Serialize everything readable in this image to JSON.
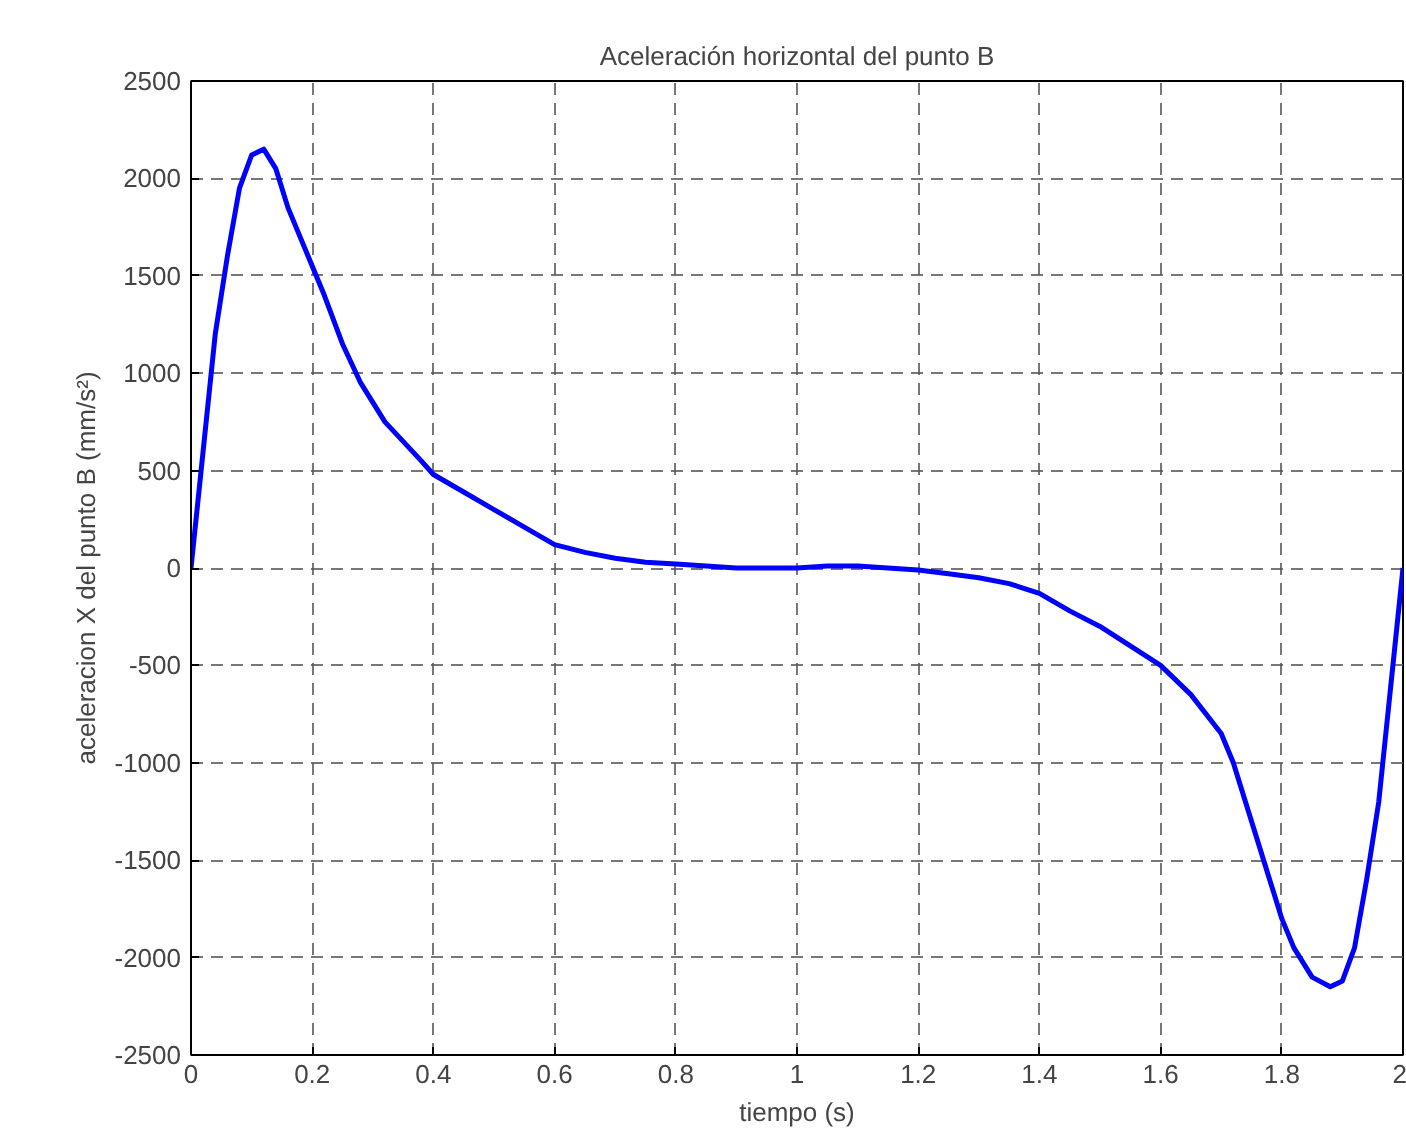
{
  "chart_data": {
    "type": "line",
    "title": "Aceleración horizontal del punto B",
    "xlabel": "tiempo (s)",
    "ylabel": "aceleracion X del punto B (mm/s²)",
    "x": [
      0,
      0.02,
      0.04,
      0.06,
      0.08,
      0.1,
      0.12,
      0.14,
      0.16,
      0.18,
      0.2,
      0.22,
      0.25,
      0.28,
      0.3,
      0.32,
      0.35,
      0.38,
      0.4,
      0.45,
      0.5,
      0.55,
      0.6,
      0.65,
      0.7,
      0.75,
      0.8,
      0.85,
      0.9,
      0.95,
      1.0,
      1.05,
      1.1,
      1.15,
      1.2,
      1.25,
      1.3,
      1.35,
      1.4,
      1.45,
      1.5,
      1.55,
      1.6,
      1.65,
      1.7,
      1.72,
      1.75,
      1.78,
      1.8,
      1.82,
      1.85,
      1.88,
      1.9,
      1.92,
      1.94,
      1.96,
      1.98,
      2.0
    ],
    "series": [
      {
        "color": "#0000ff",
        "values": [
          0,
          600,
          1200,
          1600,
          1950,
          2120,
          2150,
          2050,
          1850,
          1700,
          1550,
          1400,
          1150,
          950,
          850,
          750,
          650,
          550,
          480,
          390,
          300,
          210,
          120,
          80,
          50,
          30,
          20,
          10,
          0,
          0,
          0,
          10,
          10,
          0,
          -10,
          -30,
          -50,
          -80,
          -130,
          -220,
          -300,
          -400,
          -500,
          -650,
          -850,
          -1000,
          -1300,
          -1600,
          -1800,
          -1950,
          -2100,
          -2150,
          -2120,
          -1950,
          -1600,
          -1200,
          -600,
          0
        ]
      }
    ],
    "xlim": [
      0,
      2
    ],
    "ylim": [
      -2500,
      2500
    ],
    "xticks": [
      0,
      0.2,
      0.4,
      0.6,
      0.8,
      1,
      1.2,
      1.4,
      1.6,
      1.8,
      2
    ],
    "yticks": [
      -2500,
      -2000,
      -1500,
      -1000,
      -500,
      0,
      500,
      1000,
      1500,
      2000,
      2500
    ],
    "grid": true,
    "line_style": "solid"
  }
}
